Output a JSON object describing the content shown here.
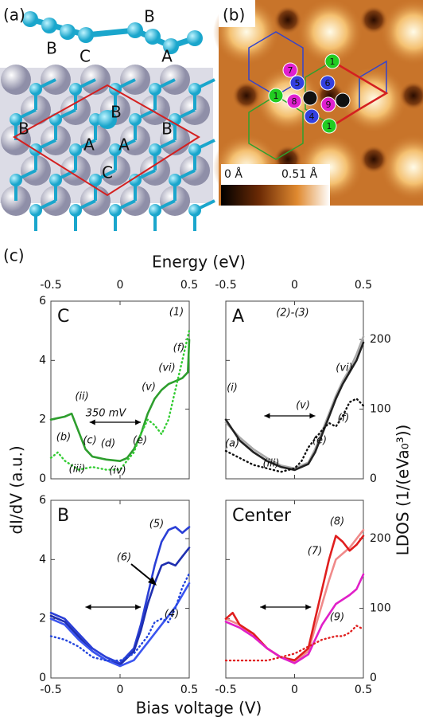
{
  "panel_a": {
    "label": "(a)",
    "chain_labels": [
      "B",
      "C",
      "B",
      "A"
    ],
    "surface_labels": [
      "B",
      "B",
      "B",
      "A",
      "A",
      "C"
    ]
  },
  "panel_b": {
    "label": "(b)",
    "sites": [
      "1",
      "7",
      "5",
      "6",
      "1",
      "8",
      "2",
      "9",
      "3",
      "4",
      "1"
    ],
    "colorbar_labels": [
      "0 Å",
      "0.51 Å"
    ]
  },
  "panel_c": {
    "label": "(c)",
    "top_axis_label": "Energy (eV)",
    "x_label": "Bias voltage (V)",
    "y_label": "dI/dV (a.u.)",
    "y2_label": "LDOS (1/(eVa₀³))"
  },
  "chart_data": [
    {
      "type": "line",
      "title": "C",
      "xlim": [
        -0.5,
        0.5
      ],
      "xticks": [
        -0.5,
        0,
        0.5
      ],
      "ylim": [
        0,
        6
      ],
      "yticks": [
        0,
        2,
        4,
        6
      ],
      "y2lim": [
        0,
        255
      ],
      "y2ticks": [
        0,
        100,
        200
      ],
      "annotations": [
        "(1)",
        "(ii)",
        "350 mV",
        "(b)",
        "(c)",
        "(d)",
        "(iii)",
        "(iv)",
        "(v)",
        "(vi)",
        "(e)",
        "(f)"
      ],
      "series": [
        {
          "color": "#2e9e2e",
          "style": "solid",
          "x": [
            -0.5,
            -0.45,
            -0.4,
            -0.35,
            -0.3,
            -0.25,
            -0.2,
            -0.1,
            0,
            0.05,
            0.1,
            0.15,
            0.2,
            0.25,
            0.3,
            0.35,
            0.4,
            0.45,
            0.49,
            0.5
          ],
          "values": [
            2.0,
            2.05,
            2.1,
            2.2,
            1.6,
            1.0,
            0.75,
            0.65,
            0.6,
            0.7,
            1.0,
            1.5,
            2.2,
            2.7,
            3.0,
            3.2,
            3.3,
            3.4,
            3.6,
            4.7
          ]
        },
        {
          "color": "#33cc33",
          "style": "dotted",
          "axis": "y2",
          "x": [
            -0.5,
            -0.45,
            -0.4,
            -0.3,
            -0.2,
            -0.1,
            0,
            0.05,
            0.1,
            0.15,
            0.2,
            0.25,
            0.3,
            0.35,
            0.4,
            0.45,
            0.5
          ],
          "values": [
            30,
            38,
            26,
            13,
            17,
            13,
            13,
            26,
            38,
            64,
            85,
            77,
            64,
            85,
            128,
            170,
            213
          ]
        }
      ]
    },
    {
      "type": "line",
      "title": "A",
      "xlim": [
        -0.5,
        0.5
      ],
      "xticks": [
        -0.5,
        0,
        0.5
      ],
      "ylim": [
        0,
        6
      ],
      "yticks": [
        0,
        2,
        4,
        6
      ],
      "y2lim": [
        0,
        255
      ],
      "y2ticks": [
        0,
        100,
        200
      ],
      "annotations": [
        "(2)-(3)",
        "(i)",
        "(a)",
        "(iii)",
        "(v)",
        "(vi)",
        "(e)",
        "(f)"
      ],
      "series": [
        {
          "color": "#aaaaaa",
          "style": "solid",
          "x": [
            -0.5,
            -0.4,
            -0.3,
            -0.2,
            -0.1,
            0,
            0.1,
            0.15,
            0.2,
            0.25,
            0.3,
            0.35,
            0.4,
            0.45,
            0.5
          ],
          "values": [
            1.9,
            1.4,
            1.0,
            0.7,
            0.45,
            0.35,
            0.55,
            1.0,
            1.6,
            2.2,
            2.8,
            3.3,
            3.7,
            4.2,
            4.8
          ]
        },
        {
          "color": "#222222",
          "style": "solid",
          "x": [
            -0.5,
            -0.4,
            -0.3,
            -0.2,
            -0.1,
            0,
            0.1,
            0.15,
            0.2,
            0.25,
            0.3,
            0.35,
            0.4,
            0.45,
            0.5
          ],
          "values": [
            2.0,
            1.3,
            0.9,
            0.6,
            0.4,
            0.3,
            0.5,
            0.9,
            1.5,
            2.1,
            2.7,
            3.2,
            3.6,
            4.0,
            4.6
          ]
        },
        {
          "color": "#111111",
          "style": "dotted",
          "axis": "y2",
          "x": [
            -0.5,
            -0.4,
            -0.3,
            -0.2,
            -0.1,
            0,
            0.05,
            0.1,
            0.2,
            0.25,
            0.3,
            0.35,
            0.4,
            0.45,
            0.5
          ],
          "values": [
            40,
            30,
            20,
            15,
            10,
            15,
            25,
            45,
            70,
            80,
            75,
            90,
            110,
            115,
            105
          ]
        }
      ]
    },
    {
      "type": "line",
      "title": "B",
      "xlim": [
        -0.5,
        0.5
      ],
      "xticks": [
        -0.5,
        0,
        0.5
      ],
      "ylim": [
        0,
        6
      ],
      "yticks": [
        0,
        2,
        4,
        6
      ],
      "y2lim": [
        0,
        255
      ],
      "y2ticks": [
        0,
        100,
        200
      ],
      "annotations": [
        "(5)",
        "(6)",
        "(4)"
      ],
      "series": [
        {
          "color": "#2a3fd6",
          "style": "solid",
          "x": [
            -0.5,
            -0.4,
            -0.3,
            -0.2,
            -0.1,
            0,
            0.1,
            0.15,
            0.2,
            0.25,
            0.3,
            0.35,
            0.4,
            0.45,
            0.5
          ],
          "values": [
            2.2,
            2.0,
            1.5,
            1.0,
            0.7,
            0.5,
            1.0,
            1.8,
            2.8,
            3.8,
            4.6,
            5.0,
            5.1,
            4.9,
            5.1
          ]
        },
        {
          "color": "#1f2fb0",
          "style": "solid",
          "x": [
            -0.5,
            -0.4,
            -0.3,
            -0.2,
            -0.1,
            0,
            0.1,
            0.15,
            0.2,
            0.25,
            0.3,
            0.35,
            0.4,
            0.45,
            0.5
          ],
          "values": [
            2.1,
            1.9,
            1.4,
            0.9,
            0.6,
            0.45,
            0.9,
            1.6,
            2.5,
            3.2,
            3.8,
            3.9,
            3.8,
            4.1,
            4.4
          ]
        },
        {
          "color": "#3b55f0",
          "style": "solid",
          "x": [
            -0.5,
            -0.4,
            -0.3,
            -0.2,
            -0.1,
            0,
            0.1,
            0.2,
            0.3,
            0.4,
            0.5
          ],
          "values": [
            2.0,
            1.8,
            1.3,
            0.9,
            0.6,
            0.4,
            0.6,
            1.2,
            1.8,
            2.4,
            3.2
          ]
        },
        {
          "color": "#2244dd",
          "style": "dotted",
          "axis": "y2",
          "x": [
            -0.5,
            -0.4,
            -0.3,
            -0.2,
            -0.1,
            0,
            0.1,
            0.2,
            0.25,
            0.3,
            0.35,
            0.4,
            0.45,
            0.5
          ],
          "values": [
            60,
            55,
            45,
            30,
            25,
            25,
            35,
            60,
            80,
            85,
            80,
            100,
            130,
            150
          ]
        }
      ]
    },
    {
      "type": "line",
      "title": "Center",
      "xlim": [
        -0.5,
        0.5
      ],
      "xticks": [
        -0.5,
        0,
        0.5
      ],
      "ylim": [
        0,
        6
      ],
      "yticks": [
        0,
        2,
        4,
        6
      ],
      "y2lim": [
        0,
        255
      ],
      "y2ticks": [
        0,
        100,
        200
      ],
      "annotations": [
        "(8)",
        "(7)",
        "(9)"
      ],
      "series": [
        {
          "color": "#f08a8a",
          "style": "solid",
          "x": [
            -0.5,
            -0.4,
            -0.3,
            -0.2,
            -0.1,
            0,
            0.1,
            0.15,
            0.2,
            0.25,
            0.3,
            0.35,
            0.4,
            0.45,
            0.5
          ],
          "values": [
            2.0,
            1.8,
            1.4,
            1.0,
            0.7,
            0.55,
            0.9,
            1.7,
            2.5,
            3.3,
            4.0,
            4.2,
            4.4,
            4.7,
            5.0
          ]
        },
        {
          "color": "#e01e1e",
          "style": "solid",
          "x": [
            -0.5,
            -0.45,
            -0.4,
            -0.3,
            -0.2,
            -0.1,
            0,
            0.1,
            0.15,
            0.2,
            0.25,
            0.3,
            0.35,
            0.4,
            0.45,
            0.5
          ],
          "values": [
            2.0,
            2.2,
            1.8,
            1.5,
            1.0,
            0.7,
            0.6,
            1.0,
            2.0,
            3.0,
            4.0,
            4.8,
            4.6,
            4.3,
            4.5,
            4.8
          ]
        },
        {
          "color": "#e020c8",
          "style": "solid",
          "x": [
            -0.5,
            -0.4,
            -0.3,
            -0.2,
            -0.1,
            0,
            0.1,
            0.2,
            0.3,
            0.4,
            0.45,
            0.5
          ],
          "values": [
            1.9,
            1.7,
            1.4,
            1.0,
            0.7,
            0.5,
            0.8,
            1.8,
            2.5,
            2.8,
            3.0,
            3.5
          ]
        },
        {
          "color": "#e02020",
          "style": "dotted",
          "axis": "y2",
          "x": [
            -0.5,
            -0.3,
            -0.2,
            -0.1,
            0,
            0.1,
            0.2,
            0.3,
            0.35,
            0.4,
            0.45,
            0.5
          ],
          "values": [
            25,
            25,
            25,
            30,
            35,
            45,
            55,
            60,
            60,
            65,
            75,
            70
          ]
        }
      ]
    }
  ]
}
